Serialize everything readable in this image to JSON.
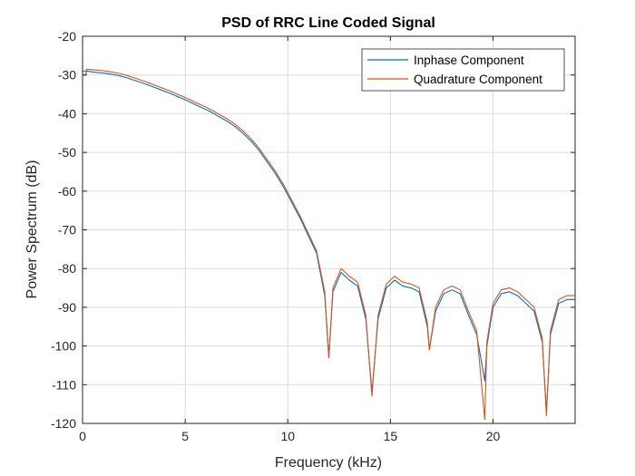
{
  "chart_data": {
    "type": "line",
    "title": "PSD of RRC Line Coded Signal",
    "xlabel": "Frequency (kHz)",
    "ylabel": "Power Spectrum (dB)",
    "xlim": [
      0,
      24
    ],
    "ylim": [
      -120,
      -20
    ],
    "xticks": [
      0,
      5,
      10,
      15,
      20
    ],
    "yticks": [
      -20,
      -30,
      -40,
      -50,
      -60,
      -70,
      -80,
      -90,
      -100,
      -110,
      -120
    ],
    "grid": true,
    "legend_position": "top-right",
    "series": [
      {
        "name": "Inphase Component",
        "color": "#0072BD",
        "x": [
          0,
          0.15,
          0.2,
          0.6,
          1.0,
          1.4,
          1.8,
          2.2,
          2.6,
          3.0,
          3.4,
          3.8,
          4.2,
          4.6,
          5.0,
          5.4,
          5.8,
          6.2,
          6.6,
          7.0,
          7.4,
          7.8,
          8.2,
          8.6,
          9.0,
          9.4,
          9.8,
          10.2,
          10.6,
          11.0,
          11.4,
          11.8,
          12.0,
          12.2,
          12.6,
          13.0,
          13.4,
          13.8,
          14.1,
          14.4,
          14.8,
          15.2,
          15.6,
          16.0,
          16.4,
          16.8,
          16.9,
          17.2,
          17.6,
          18.0,
          18.4,
          18.8,
          19.2,
          19.6,
          19.7,
          20.0,
          20.4,
          20.8,
          21.2,
          21.6,
          22.0,
          22.4,
          22.6,
          22.8,
          23.2,
          23.6,
          24.0
        ],
        "values": [
          -30,
          -30,
          -29,
          -29.3,
          -29.5,
          -29.8,
          -30.2,
          -30.8,
          -31.5,
          -32.2,
          -33,
          -33.8,
          -34.6,
          -35.5,
          -36.4,
          -37.4,
          -38.4,
          -39.4,
          -40.6,
          -41.8,
          -43.2,
          -45,
          -47,
          -49.5,
          -52.5,
          -55.5,
          -59,
          -63,
          -67,
          -71.5,
          -76,
          -87,
          -103,
          -86,
          -81,
          -83,
          -84.5,
          -93,
          -112,
          -93,
          -85,
          -83,
          -84.5,
          -85,
          -86,
          -95,
          -101,
          -91,
          -86.5,
          -85.5,
          -86.5,
          -92,
          -97,
          -109,
          -100,
          -90,
          -86.5,
          -86,
          -87,
          -89,
          -91,
          -99,
          -117,
          -97,
          -89,
          -88,
          -88
        ]
      },
      {
        "name": "Quadrature Component",
        "color": "#D95319",
        "x": [
          0,
          0.15,
          0.2,
          0.6,
          1.0,
          1.4,
          1.8,
          2.2,
          2.6,
          3.0,
          3.4,
          3.8,
          4.2,
          4.6,
          5.0,
          5.4,
          5.8,
          6.2,
          6.6,
          7.0,
          7.4,
          7.8,
          8.2,
          8.6,
          9.0,
          9.4,
          9.8,
          10.2,
          10.6,
          11.0,
          11.4,
          11.8,
          12.0,
          12.2,
          12.6,
          13.0,
          13.4,
          13.8,
          14.1,
          14.4,
          14.8,
          15.2,
          15.6,
          16.0,
          16.4,
          16.8,
          16.9,
          17.2,
          17.6,
          18.0,
          18.4,
          18.8,
          19.2,
          19.6,
          19.7,
          20.0,
          20.4,
          20.8,
          21.2,
          21.6,
          22.0,
          22.4,
          22.6,
          22.8,
          23.2,
          23.6,
          24.0
        ],
        "values": [
          -29,
          -29,
          -28.5,
          -28.7,
          -28.9,
          -29.2,
          -29.6,
          -30.2,
          -30.9,
          -31.6,
          -32.4,
          -33.2,
          -34,
          -34.9,
          -35.8,
          -36.8,
          -37.8,
          -38.8,
          -40,
          -41.2,
          -42.6,
          -44.4,
          -46.4,
          -48.9,
          -51.9,
          -54.9,
          -58.4,
          -62.4,
          -66.4,
          -70.9,
          -75.4,
          -86,
          -103,
          -85,
          -80,
          -82,
          -83.5,
          -92,
          -113,
          -92,
          -84,
          -82,
          -83.5,
          -84,
          -85,
          -94,
          -101,
          -90,
          -85.5,
          -84.5,
          -85.5,
          -91,
          -96,
          -119,
          -99,
          -89,
          -85.5,
          -85,
          -86,
          -88,
          -90,
          -98,
          -118,
          -96,
          -88,
          -87,
          -87
        ]
      }
    ]
  }
}
